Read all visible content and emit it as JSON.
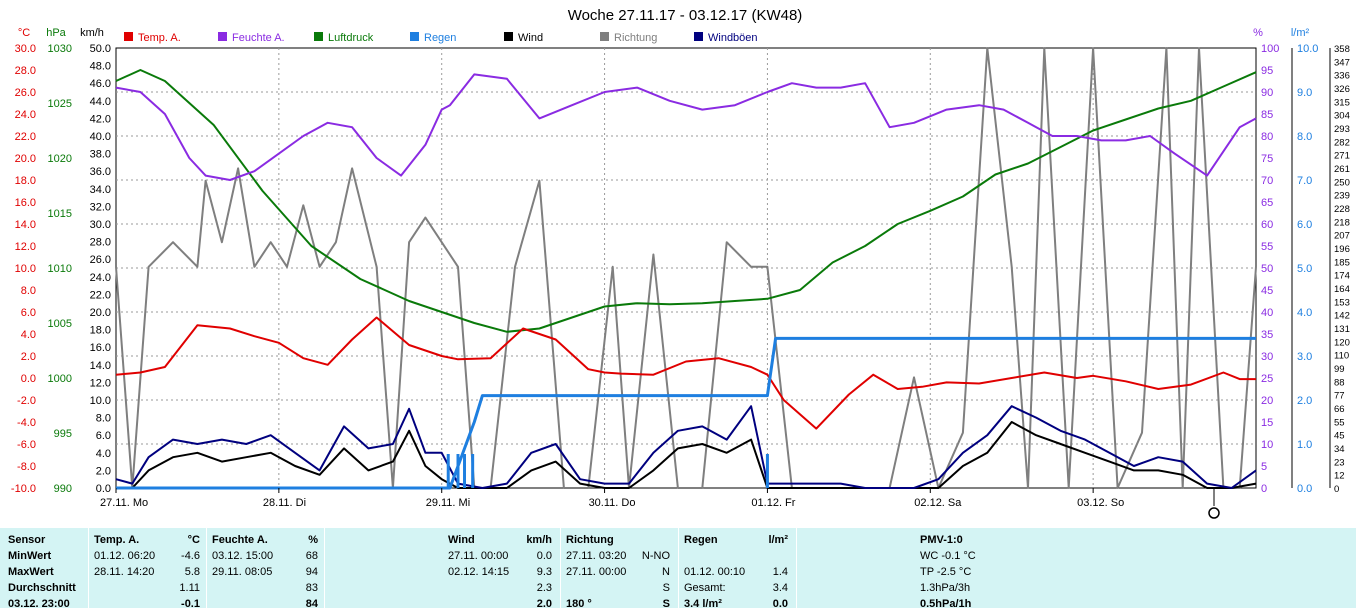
{
  "title": "Woche 27.11.17 - 03.12.17 (KW48)",
  "colors": {
    "temp": "#e00000",
    "feuchte": "#8a2be2",
    "luftdruck": "#0a7a0a",
    "regen": "#1e7fe0",
    "wind": "#000000",
    "richtung": "#7f7f7f",
    "windboeen": "#00007f",
    "grid": "#9a9a9a",
    "panel": "#d4f4f4"
  },
  "chart_data": {
    "type": "line",
    "title": "Woche 27.11.17 - 03.12.17 (KW48)",
    "x_labels": [
      "27.11. Mo",
      "28.11. Di",
      "29.11. Mi",
      "30.11. Do",
      "01.12. Fr",
      "02.12. Sa",
      "03.12. So"
    ],
    "x_range_days": [
      0,
      7
    ],
    "axes": {
      "temp": {
        "unit": "°C",
        "range": [
          -10,
          30
        ],
        "ticks": [
          "30.0",
          "28.0",
          "26.0",
          "24.0",
          "22.0",
          "20.0",
          "18.0",
          "16.0",
          "14.0",
          "12.0",
          "10.0",
          "8.0",
          "6.0",
          "4.0",
          "2.0",
          "0.0",
          "-2.0",
          "-4.0",
          "-6.0",
          "-8.0",
          "-10.0"
        ]
      },
      "pressure": {
        "unit": "hPa",
        "range": [
          990,
          1030
        ],
        "ticks": [
          "1030",
          "1025",
          "1020",
          "1015",
          "1010",
          "1005",
          "1000",
          "995",
          "990"
        ]
      },
      "wind": {
        "unit": "km/h",
        "range": [
          0,
          50
        ],
        "ticks": [
          "50.0",
          "48.0",
          "46.0",
          "44.0",
          "42.0",
          "40.0",
          "38.0",
          "36.0",
          "34.0",
          "32.0",
          "30.0",
          "28.0",
          "26.0",
          "24.0",
          "22.0",
          "20.0",
          "18.0",
          "16.0",
          "14.0",
          "12.0",
          "10.0",
          "8.0",
          "6.0",
          "4.0",
          "2.0",
          "0.0"
        ]
      },
      "humidity": {
        "unit": "%",
        "range": [
          0,
          100
        ],
        "ticks": [
          "100",
          "95",
          "90",
          "85",
          "80",
          "75",
          "70",
          "65",
          "60",
          "55",
          "50",
          "45",
          "40",
          "35",
          "30",
          "25",
          "20",
          "15",
          "10",
          "5",
          "0"
        ]
      },
      "rain": {
        "unit": "l/m²",
        "range": [
          0,
          10
        ],
        "ticks": [
          "10.0",
          "9.0",
          "8.0",
          "7.0",
          "6.0",
          "5.0",
          "4.0",
          "3.0",
          "2.0",
          "1.0",
          "0.0"
        ]
      },
      "direction": {
        "unit": "°",
        "range": [
          0,
          358
        ],
        "ticks": [
          "358",
          "347",
          "336",
          "326",
          "315",
          "304",
          "293",
          "282",
          "271",
          "261",
          "250",
          "239",
          "228",
          "218",
          "207",
          "196",
          "185",
          "174",
          "164",
          "153",
          "142",
          "131",
          "120",
          "110",
          "99",
          "88",
          "77",
          "66",
          "55",
          "45",
          "34",
          "23",
          "12",
          "0"
        ]
      }
    },
    "legend": [
      {
        "key": "temp",
        "label": "Temp. A."
      },
      {
        "key": "feuchte",
        "label": "Feuchte A."
      },
      {
        "key": "luftdruck",
        "label": "Luftdruck"
      },
      {
        "key": "regen",
        "label": "Regen"
      },
      {
        "key": "wind",
        "label": "Wind"
      },
      {
        "key": "richtung",
        "label": "Richtung"
      },
      {
        "key": "windboeen",
        "label": "Windböen"
      }
    ],
    "series": [
      {
        "name": "Temp. A.",
        "key": "temp",
        "axis": "temp",
        "x": [
          0,
          0.15,
          0.3,
          0.5,
          0.7,
          0.85,
          1,
          1.15,
          1.3,
          1.45,
          1.6,
          1.8,
          2,
          2.1,
          2.3,
          2.5,
          2.7,
          2.9,
          3.0,
          3.1,
          3.3,
          3.5,
          3.7,
          3.9,
          4.0,
          4.1,
          4.3,
          4.5,
          4.65,
          4.8,
          4.95,
          5.1,
          5.3,
          5.5,
          5.7,
          5.9,
          6.0,
          6.2,
          6.4,
          6.6,
          6.8,
          6.9,
          7.0
        ],
        "y": [
          0.3,
          0.5,
          1.0,
          4.8,
          4.5,
          3.8,
          3.2,
          1.8,
          1.2,
          3.5,
          5.5,
          3.0,
          2.0,
          1.7,
          1.8,
          4.5,
          3.5,
          0.8,
          0.5,
          0.4,
          0.3,
          1.5,
          1.8,
          1.0,
          0.3,
          -2.0,
          -4.6,
          -1.5,
          0.3,
          -1.0,
          -0.8,
          -0.4,
          -0.5,
          0.0,
          0.5,
          0.0,
          0.2,
          -0.3,
          -1.0,
          -0.6,
          0.5,
          -0.1,
          -0.1
        ]
      },
      {
        "name": "Feuchte A.",
        "key": "feuchte",
        "axis": "humidity",
        "x": [
          0,
          0.15,
          0.3,
          0.45,
          0.55,
          0.7,
          0.85,
          1,
          1.15,
          1.3,
          1.45,
          1.6,
          1.75,
          1.9,
          2.0,
          2.05,
          2.2,
          2.4,
          2.6,
          2.8,
          3.0,
          3.2,
          3.4,
          3.6,
          3.8,
          4.0,
          4.15,
          4.3,
          4.45,
          4.6,
          4.75,
          4.9,
          5.1,
          5.3,
          5.45,
          5.6,
          5.75,
          5.9,
          6.05,
          6.2,
          6.35,
          6.5,
          6.7,
          6.9,
          7.0
        ],
        "y": [
          91,
          90,
          85,
          75,
          71,
          70,
          72,
          76,
          80,
          83,
          82,
          75,
          71,
          78,
          86,
          87,
          94,
          93,
          84,
          87,
          90,
          91,
          88,
          86,
          87,
          90,
          92,
          91,
          91,
          92,
          82,
          83,
          86,
          87,
          86,
          83,
          80,
          80,
          79,
          79,
          80,
          76,
          71,
          82,
          84
        ]
      },
      {
        "name": "Luftdruck",
        "key": "luftdruck",
        "axis": "pressure",
        "x": [
          0,
          0.15,
          0.3,
          0.6,
          0.9,
          1.2,
          1.5,
          1.8,
          2.0,
          2.2,
          2.4,
          2.6,
          2.8,
          3.0,
          3.2,
          3.4,
          3.6,
          3.8,
          4.0,
          4.2,
          4.4,
          4.6,
          4.8,
          5.0,
          5.2,
          5.4,
          5.6,
          5.8,
          6.0,
          6.2,
          6.4,
          6.6,
          6.8,
          7.0
        ],
        "y": [
          1027,
          1028,
          1027,
          1023,
          1017,
          1012,
          1009,
          1007,
          1006,
          1005,
          1004.2,
          1004.5,
          1005.5,
          1006.5,
          1006.8,
          1006.7,
          1006.8,
          1007.0,
          1007.2,
          1008.0,
          1010.5,
          1012.0,
          1014.0,
          1015.2,
          1016.5,
          1018.5,
          1019.5,
          1021.0,
          1022.5,
          1023.5,
          1024.5,
          1025.2,
          1026.5,
          1027.8
        ]
      },
      {
        "name": "Regen",
        "key": "regen",
        "axis": "rain",
        "x": [
          0,
          2.05,
          2.2,
          2.25,
          4.0,
          4.05,
          4.1,
          7.0
        ],
        "y": [
          0,
          0,
          1.5,
          2.1,
          2.1,
          3.4,
          3.4,
          3.4
        ]
      },
      {
        "name": "Wind",
        "key": "wind",
        "axis": "wind",
        "x": [
          0,
          0.1,
          0.2,
          0.35,
          0.5,
          0.65,
          0.8,
          0.95,
          1.1,
          1.25,
          1.4,
          1.55,
          1.7,
          1.8,
          1.9,
          2.0,
          2.1,
          2.25,
          2.4,
          2.55,
          2.7,
          2.85,
          3.0,
          3.15,
          3.3,
          3.45,
          3.6,
          3.75,
          3.9,
          4.0,
          4.15,
          4.3,
          4.45,
          4.6,
          4.75,
          4.9,
          5.05,
          5.2,
          5.35,
          5.5,
          5.65,
          5.8,
          5.95,
          6.1,
          6.25,
          6.4,
          6.55,
          6.7,
          6.85,
          7.0
        ],
        "y": [
          0,
          0,
          2.0,
          3.5,
          4.0,
          3.0,
          3.5,
          4.0,
          2.5,
          1.5,
          4.5,
          2.0,
          3.0,
          6.5,
          2.5,
          1.0,
          0,
          0,
          0,
          2.0,
          3.0,
          0.5,
          0,
          0,
          2.0,
          4.5,
          5.0,
          4.0,
          5.5,
          0,
          0,
          0,
          0,
          0,
          0,
          0,
          0,
          2.5,
          4.0,
          7.5,
          6.0,
          5.0,
          4.0,
          3.0,
          2.0,
          2.0,
          1.5,
          0,
          0,
          0.5
        ]
      },
      {
        "name": "Windböen",
        "key": "windboeen",
        "axis": "wind",
        "x": [
          0,
          0.1,
          0.2,
          0.35,
          0.5,
          0.65,
          0.8,
          0.95,
          1.1,
          1.25,
          1.4,
          1.55,
          1.7,
          1.8,
          1.9,
          2.0,
          2.1,
          2.25,
          2.4,
          2.55,
          2.7,
          2.85,
          3.0,
          3.15,
          3.3,
          3.45,
          3.6,
          3.75,
          3.9,
          4.0,
          4.15,
          4.3,
          4.45,
          4.6,
          4.75,
          4.9,
          5.05,
          5.2,
          5.35,
          5.5,
          5.65,
          5.8,
          5.95,
          6.1,
          6.25,
          6.4,
          6.55,
          6.7,
          6.85,
          7.0
        ],
        "y": [
          1.0,
          0.5,
          3.5,
          5.5,
          5.0,
          5.5,
          5.0,
          6.0,
          4.0,
          2.0,
          7.0,
          4.5,
          5.0,
          9.0,
          4.0,
          4.0,
          0.5,
          0,
          0.5,
          4.0,
          5.0,
          1.0,
          0.5,
          0.5,
          4.0,
          6.5,
          7.0,
          5.5,
          9.3,
          0.5,
          0.5,
          0.5,
          0.5,
          0,
          0,
          0,
          1.0,
          4.0,
          6.0,
          9.3,
          8.0,
          6.5,
          5.5,
          4.0,
          2.5,
          3.5,
          3.0,
          0.5,
          0,
          2.0
        ]
      },
      {
        "name": "Richtung",
        "key": "richtung",
        "axis": "direction",
        "x": [
          0,
          0.1,
          0.2,
          0.35,
          0.5,
          0.55,
          0.65,
          0.75,
          0.85,
          0.95,
          1.05,
          1.15,
          1.25,
          1.35,
          1.45,
          1.6,
          1.7,
          1.8,
          1.9,
          2.0,
          2.1,
          2.2,
          2.3,
          2.45,
          2.6,
          2.75,
          2.9,
          3.05,
          3.15,
          3.3,
          3.45,
          3.6,
          3.75,
          3.9,
          4.0,
          4.15,
          4.3,
          4.45,
          4.6,
          4.75,
          4.9,
          5.05,
          5.2,
          5.35,
          5.5,
          5.6,
          5.7,
          5.85,
          6.0,
          6.15,
          6.3,
          6.45,
          6.55,
          6.65,
          6.8,
          6.9,
          7.0
        ],
        "y": [
          180,
          0,
          180,
          200,
          180,
          250,
          200,
          260,
          180,
          200,
          180,
          230,
          180,
          200,
          260,
          180,
          0,
          200,
          220,
          200,
          180,
          0,
          0,
          180,
          250,
          0,
          0,
          180,
          0,
          190,
          0,
          0,
          200,
          180,
          180,
          0,
          0,
          0,
          0,
          0,
          90,
          0,
          45,
          358,
          180,
          0,
          358,
          0,
          358,
          0,
          45,
          358,
          0,
          358,
          0,
          0,
          180
        ]
      }
    ]
  },
  "stats": {
    "headers": {
      "sensor": "Sensor",
      "temp": "Temp. A.",
      "temp_unit": "°C",
      "feuchte": "Feuchte A.",
      "feuchte_unit": "%",
      "wind": "Wind",
      "wind_unit": "km/h",
      "richtung": "Richtung",
      "regen": "Regen",
      "regen_unit": "l/m²",
      "pmv": "PMV-1:0"
    },
    "rows": [
      {
        "label": "MinWert",
        "temp_time": "01.12.  06:20",
        "temp_val": "-4.6",
        "feuchte_time": "03.12.  15:00",
        "feuchte_val": "68",
        "wind_time": "27.11.  00:00",
        "wind_val": "0.0",
        "richtung_time": "27.11.  03:20",
        "richtung_val": "N-NO",
        "regen_time": "",
        "regen_val": "",
        "pmv": "WC -0.1 °C"
      },
      {
        "label": "MaxWert",
        "temp_time": "28.11.  14:20",
        "temp_val": "5.8",
        "feuchte_time": "29.11.  08:05",
        "feuchte_val": "94",
        "wind_time": "02.12.  14:15",
        "wind_val": "9.3",
        "richtung_time": "27.11.  00:00",
        "richtung_val": "N",
        "regen_time": "01.12.  00:10",
        "regen_val": "1.4",
        "pmv": "TP -2.5 °C"
      },
      {
        "label": "Durchschnitt",
        "temp_time": "",
        "temp_val": "1.11",
        "feuchte_time": "",
        "feuchte_val": "83",
        "wind_time": "",
        "wind_val": "2.3",
        "richtung_time": "",
        "richtung_val": "S",
        "regen_time": "Gesamt:",
        "regen_val": "3.4",
        "pmv": "1.3hPa/3h"
      },
      {
        "label": "03.12. 23:00",
        "temp_time": "",
        "temp_val": "-0.1",
        "feuchte_time": "",
        "feuchte_val": "84",
        "wind_time": "",
        "wind_val": "2.0",
        "richtung_time": "180 °",
        "richtung_val": "S",
        "regen_time": "3.4 l/m²",
        "regen_val": "0.0",
        "pmv": "0.5hPa/1h"
      }
    ]
  }
}
